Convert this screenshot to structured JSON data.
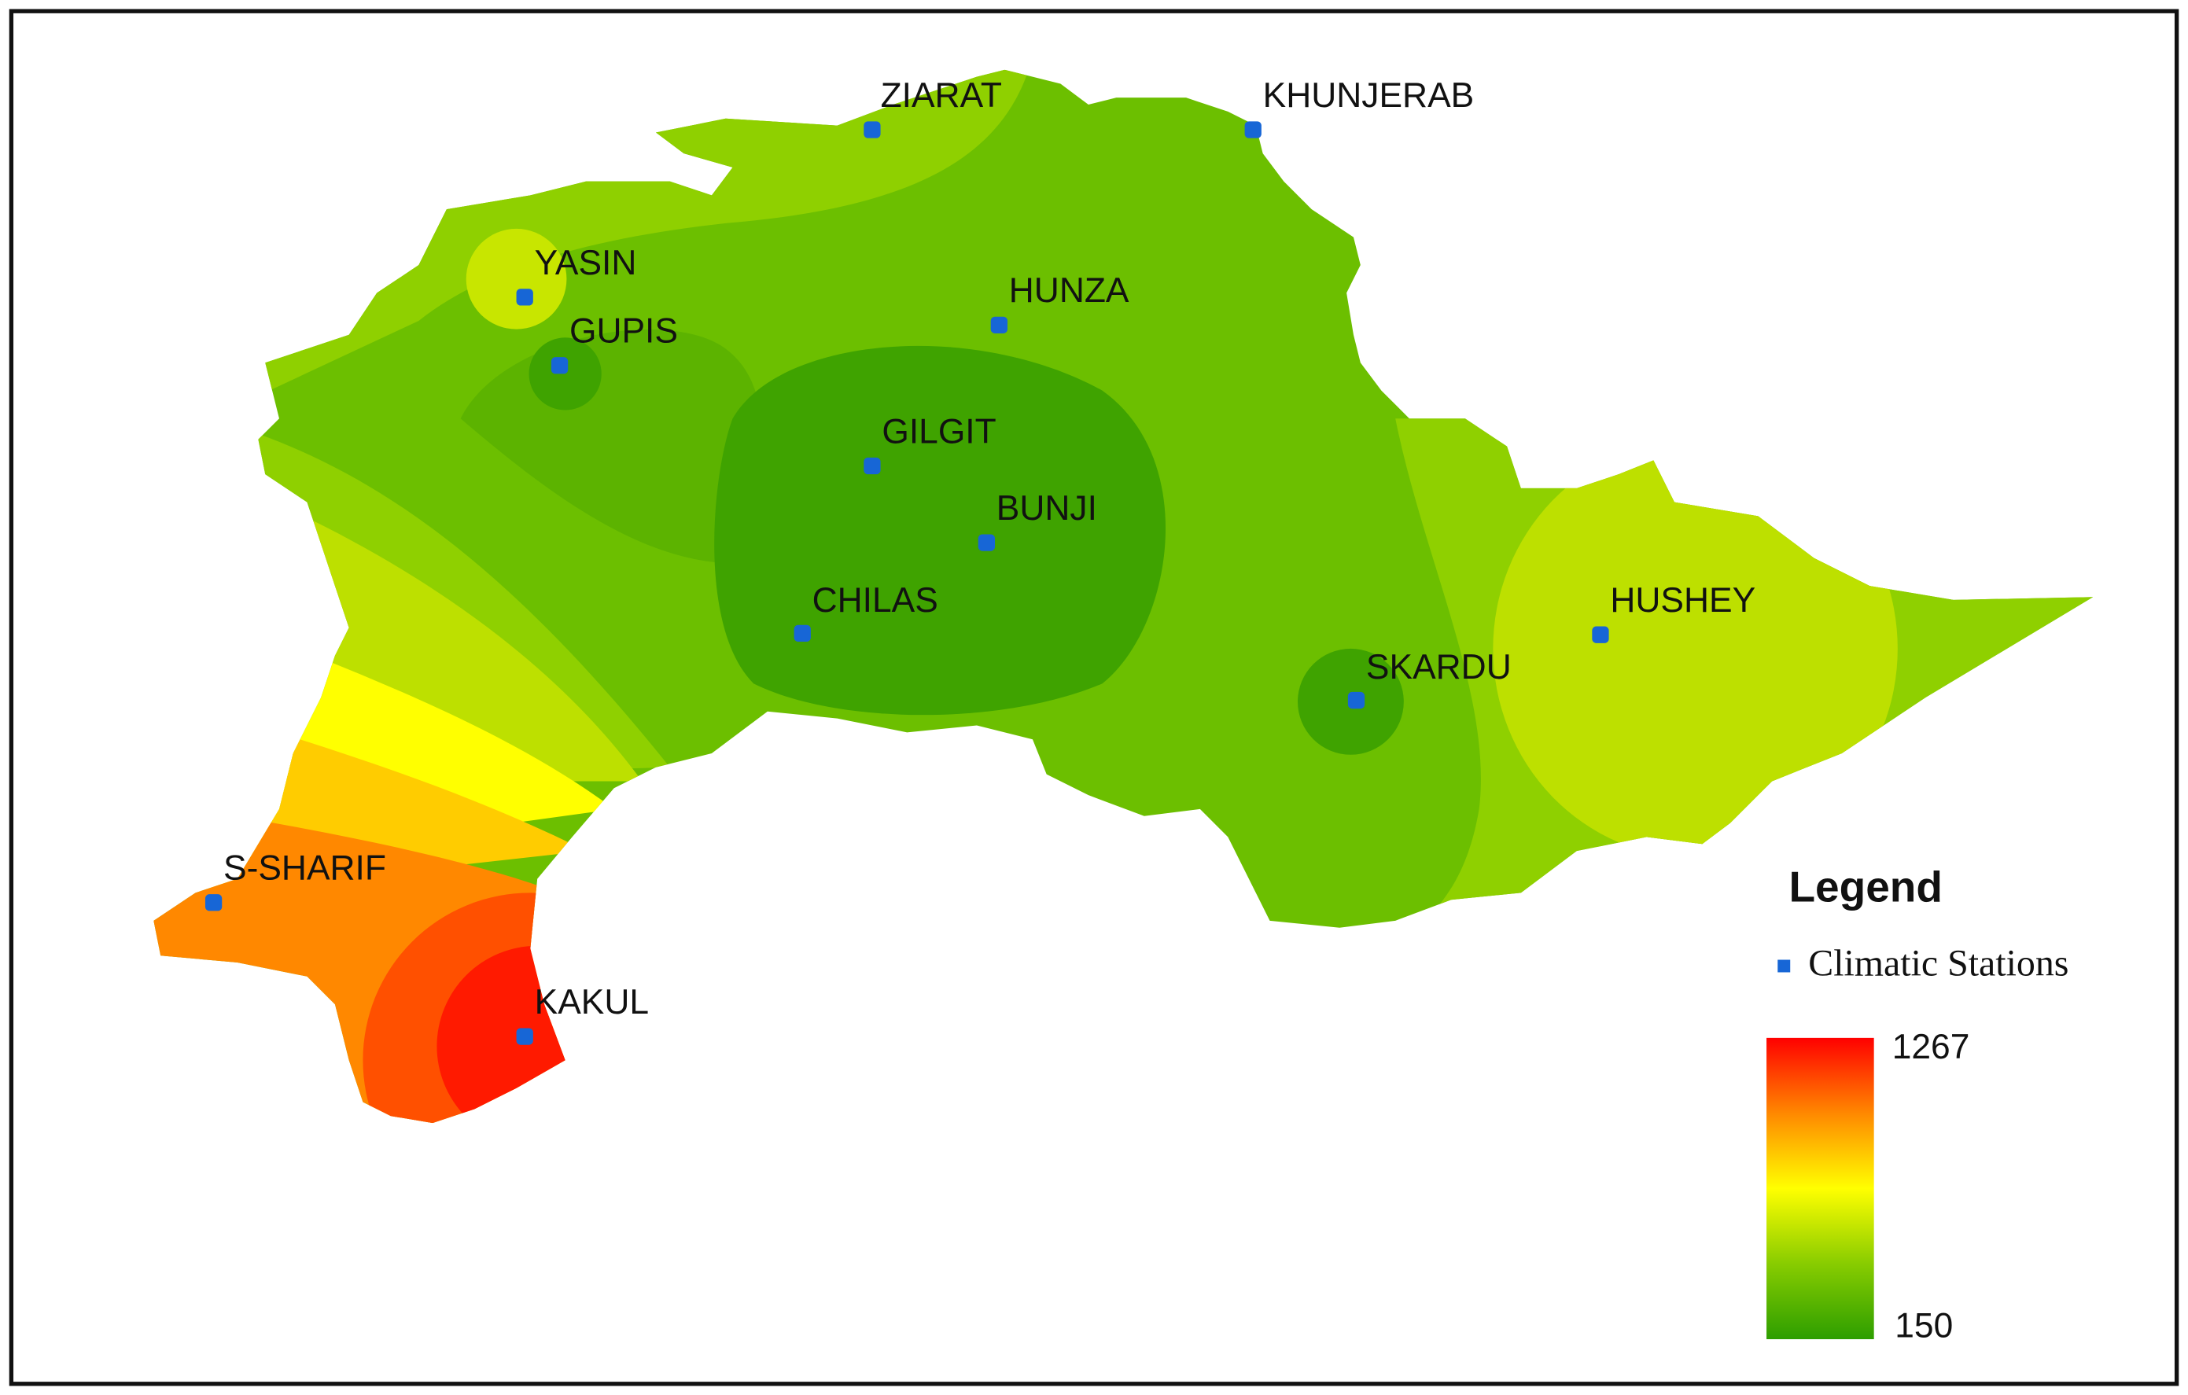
{
  "stations": [
    "ZIARAT",
    "KHUNJERAB",
    "YASIN",
    "GUPIS",
    "HUNZA",
    "GILGIT",
    "BUNJI",
    "CHILAS",
    "SKARDU",
    "HUSHEY",
    "S-SHARIF",
    "KAKUL"
  ],
  "legend": {
    "title": "Legend",
    "station_item": "Climatic Stations",
    "scale": {
      "max": 1267,
      "min": 150
    }
  }
}
